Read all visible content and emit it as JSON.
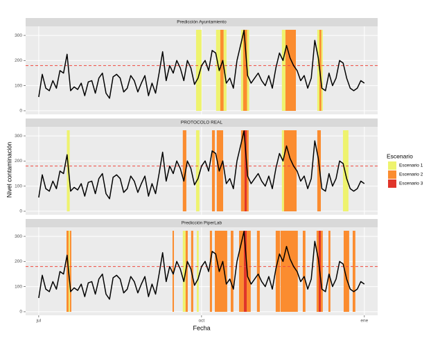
{
  "chart_data": {
    "type": "line",
    "xlabel": "Fecha",
    "ylabel": "Nivel contaminación",
    "legend_title": "Escenario",
    "legend": "right",
    "grid": true,
    "xlim": [
      -7.4,
      191.5
    ],
    "ylim": [
      -14,
      336
    ],
    "xticks": [
      {
        "value": 0,
        "label": "jul"
      },
      {
        "value": 92,
        "label": "oct"
      },
      {
        "value": 184,
        "label": "ene"
      }
    ],
    "yticks": [
      0,
      100,
      200,
      300
    ],
    "threshold": 180,
    "threshold_color": "#f0483e",
    "scenarios": [
      {
        "name": "Escenario 1",
        "color": "#eef36e"
      },
      {
        "name": "Escenario 2",
        "color": "#fb8c2f"
      },
      {
        "name": "Escenario 3",
        "color": "#e0352a"
      }
    ],
    "x": [
      0,
      2,
      4,
      6,
      8,
      10,
      12,
      14,
      16,
      18,
      20,
      22,
      24,
      26,
      28,
      30,
      32,
      34,
      36,
      38,
      40,
      42,
      44,
      46,
      48,
      50,
      52,
      54,
      56,
      58,
      60,
      62,
      64,
      66,
      68,
      70,
      72,
      74,
      76,
      78,
      80,
      82,
      84,
      86,
      88,
      90,
      92,
      94,
      96,
      98,
      100,
      102,
      104,
      106,
      108,
      110,
      112,
      114,
      116,
      118,
      120,
      122,
      124,
      126,
      128,
      130,
      132,
      134,
      136,
      138,
      140,
      142,
      144,
      146,
      148,
      150,
      152,
      154,
      156,
      158,
      160,
      162,
      164,
      166,
      168,
      170,
      172,
      174,
      176,
      178,
      180,
      182,
      184
    ],
    "series": [
      {
        "color": "#000000",
        "values": [
          55,
          145,
          90,
          80,
          120,
          90,
          160,
          150,
          225,
          80,
          95,
          85,
          110,
          60,
          115,
          120,
          70,
          130,
          150,
          70,
          50,
          135,
          145,
          130,
          75,
          90,
          140,
          120,
          75,
          110,
          140,
          60,
          110,
          70,
          150,
          235,
          120,
          180,
          150,
          200,
          170,
          120,
          200,
          170,
          105,
          130,
          180,
          200,
          160,
          240,
          230,
          160,
          200,
          110,
          130,
          90,
          200,
          260,
          320,
          140,
          110,
          130,
          150,
          120,
          100,
          140,
          90,
          170,
          230,
          200,
          260,
          210,
          180,
          160,
          120,
          140,
          90,
          130,
          280,
          210,
          90,
          80,
          150,
          100,
          130,
          200,
          190,
          130,
          90,
          80,
          90,
          120,
          110
        ]
      }
    ],
    "panels": [
      {
        "title": "Predicción Ayuntamiento",
        "bands": [
          {
            "x": [
              88.9,
              92.0
            ],
            "scenario": "Escenario 1"
          },
          {
            "x": [
              100.2,
              102.6
            ],
            "scenario": "Escenario 1"
          },
          {
            "x": [
              102.6,
              104.5
            ],
            "scenario": "Escenario 2"
          },
          {
            "x": [
              104.5,
              106.1
            ],
            "scenario": "Escenario 1"
          },
          {
            "x": [
              114.3,
              115.5
            ],
            "scenario": "Escenario 1"
          },
          {
            "x": [
              115.5,
              117.7
            ],
            "scenario": "Escenario 2"
          },
          {
            "x": [
              117.7,
              118.9
            ],
            "scenario": "Escenario 1"
          },
          {
            "x": [
              137.4,
              139.4
            ],
            "scenario": "Escenario 1"
          },
          {
            "x": [
              139.4,
              145.3
            ],
            "scenario": "Escenario 2"
          },
          {
            "x": [
              157.4,
              158.6
            ],
            "scenario": "Escenario 1"
          },
          {
            "x": [
              158.6,
              159.7
            ],
            "scenario": "Escenario 2"
          },
          {
            "x": [
              159.7,
              160.5
            ],
            "scenario": "Escenario 1"
          }
        ]
      },
      {
        "title": "PROTOCOLO REAL",
        "bands": [
          {
            "x": [
              15.9,
              17.5
            ],
            "scenario": "Escenario 1"
          },
          {
            "x": [
              81.4,
              83.4
            ],
            "scenario": "Escenario 2"
          },
          {
            "x": [
              88.9,
              90.8
            ],
            "scenario": "Escenario 1"
          },
          {
            "x": [
              97.9,
              99.5
            ],
            "scenario": "Escenario 2"
          },
          {
            "x": [
              100.6,
              104.2
            ],
            "scenario": "Escenario 2"
          },
          {
            "x": [
              114.3,
              116.3
            ],
            "scenario": "Escenario 2"
          },
          {
            "x": [
              116.3,
              117.5
            ],
            "scenario": "Escenario 3"
          },
          {
            "x": [
              117.5,
              118.6
            ],
            "scenario": "Escenario 2"
          },
          {
            "x": [
              137.4,
              138.6
            ],
            "scenario": "Escenario 1"
          },
          {
            "x": [
              138.6,
              145.7
            ],
            "scenario": "Escenario 2"
          },
          {
            "x": [
              157.4,
              159.4
            ],
            "scenario": "Escenario 2"
          },
          {
            "x": [
              171.9,
              175.0
            ],
            "scenario": "Escenario 1"
          }
        ]
      },
      {
        "title": "Predicción PiperLab",
        "bands": [
          {
            "x": [
              15.7,
              16.9
            ],
            "scenario": "Escenario 2"
          },
          {
            "x": [
              16.9,
              17.6
            ],
            "scenario": "Escenario 1"
          },
          {
            "x": [
              17.6,
              18.4
            ],
            "scenario": "Escenario 2"
          },
          {
            "x": [
              75.6,
              76.4
            ],
            "scenario": "Escenario 2"
          },
          {
            "x": [
              81.4,
              83.0
            ],
            "scenario": "Escenario 1"
          },
          {
            "x": [
              83.0,
              84.2
            ],
            "scenario": "Escenario 2"
          },
          {
            "x": [
              86.1,
              87.3
            ],
            "scenario": "Escenario 2"
          },
          {
            "x": [
              89.3,
              90.4
            ],
            "scenario": "Escenario 1"
          },
          {
            "x": [
              96.7,
              97.9
            ],
            "scenario": "Escenario 2"
          },
          {
            "x": [
              99.5,
              106.5
            ],
            "scenario": "Escenario 2"
          },
          {
            "x": [
              108.5,
              110.0
            ],
            "scenario": "Escenario 2"
          },
          {
            "x": [
              113.2,
              115.9
            ],
            "scenario": "Escenario 2"
          },
          {
            "x": [
              115.9,
              117.5
            ],
            "scenario": "Escenario 3"
          },
          {
            "x": [
              117.5,
              119.8
            ],
            "scenario": "Escenario 2"
          },
          {
            "x": [
              123.3,
              124.9
            ],
            "scenario": "Escenario 2"
          },
          {
            "x": [
              133.9,
              136.3
            ],
            "scenario": "Escenario 2"
          },
          {
            "x": [
              136.6,
              146.4
            ],
            "scenario": "Escenario 2"
          },
          {
            "x": [
              149.2,
              150.7
            ],
            "scenario": "Escenario 2"
          },
          {
            "x": [
              157.0,
              158.2
            ],
            "scenario": "Escenario 2"
          },
          {
            "x": [
              158.2,
              159.4
            ],
            "scenario": "Escenario 3"
          },
          {
            "x": [
              159.4,
              160.5
            ],
            "scenario": "Escenario 2"
          },
          {
            "x": [
              163.7,
              164.8
            ],
            "scenario": "Escenario 2"
          },
          {
            "x": [
              172.3,
              175.4
            ],
            "scenario": "Escenario 2"
          },
          {
            "x": [
              177.4,
              178.9
            ],
            "scenario": "Escenario 2"
          }
        ]
      }
    ]
  }
}
